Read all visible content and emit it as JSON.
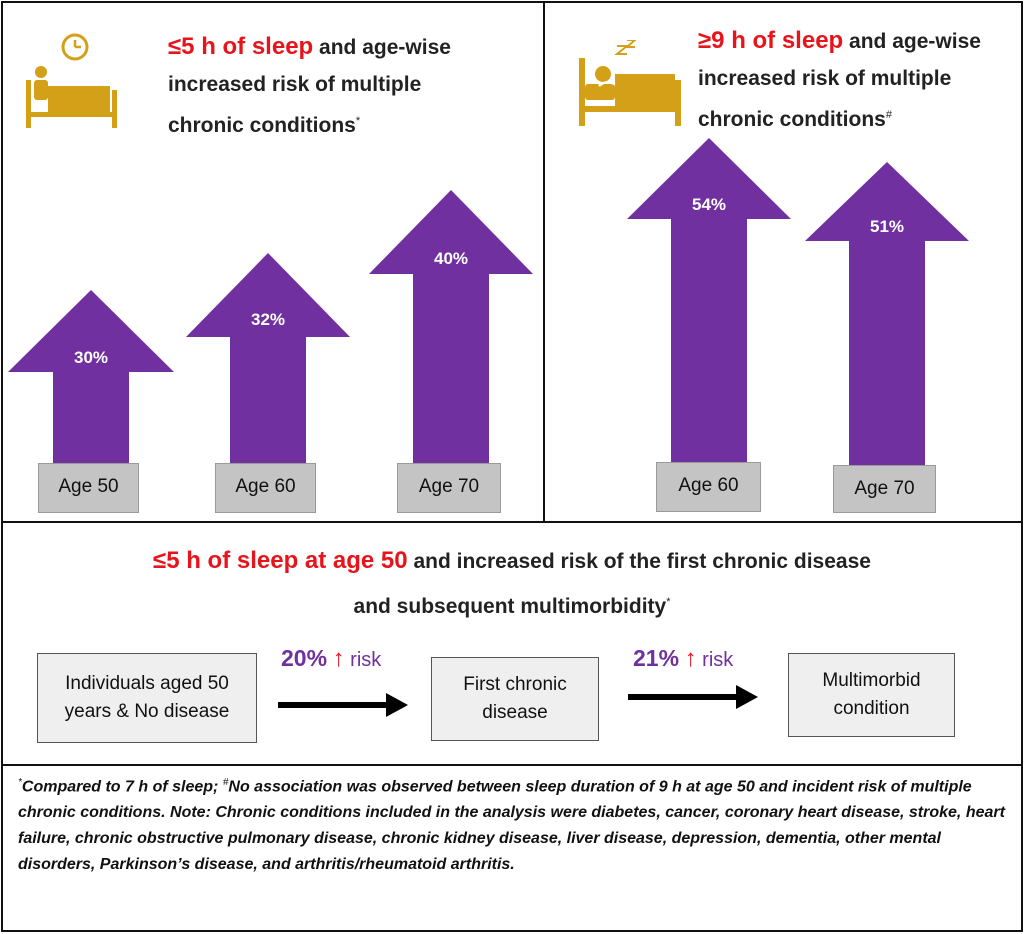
{
  "panel_left": {
    "title_highlight": "≤5 h of sleep",
    "title_line1_rest": " and age-wise",
    "title_line2": "increased risk of multiple",
    "title_line3": "chronic conditions",
    "title_mark": "*",
    "icon": "bed-with-clock-icon",
    "bars": [
      {
        "label": "Age 50",
        "value_text": "30%"
      },
      {
        "label": "Age 60",
        "value_text": "32%"
      },
      {
        "label": "Age 70",
        "value_text": "40%"
      }
    ]
  },
  "panel_right": {
    "title_highlight": "≥9 h of sleep",
    "title_line1_rest": " and age-wise",
    "title_line2": "increased risk of multiple",
    "title_line3": "chronic conditions",
    "title_mark": "#",
    "icon": "sleeping-in-bed-icon",
    "bars": [
      {
        "label": "Age 60",
        "value_text": "54%"
      },
      {
        "label": "Age 70",
        "value_text": "51%"
      }
    ]
  },
  "panel_bottom": {
    "title_highlight": "≤5 h of sleep at age 50",
    "title_line1_rest": " and increased risk of the first chronic disease",
    "title_line2": "and subsequent multimorbidity",
    "title_mark": "*",
    "flow": [
      {
        "line1": "Individuals aged 50",
        "line2": "years & No disease"
      },
      {
        "line1": "First chronic",
        "line2": "disease"
      },
      {
        "line1": "Multimorbid",
        "line2": "condition"
      }
    ],
    "risks": [
      {
        "value": "20%",
        "arrow": "↑",
        "word": "risk"
      },
      {
        "value": "21%",
        "arrow": "↑",
        "word": "risk"
      }
    ]
  },
  "footnote": {
    "mark1": "*",
    "part1": "Compared to 7 h of sleep; ",
    "mark2": "#",
    "part2": "No association was observed between sleep duration of 9 h at age 50 and incident risk of multiple chronic conditions. Note: Chronic conditions included in the analysis were diabetes, cancer, coronary heart disease, stroke, heart failure, chronic obstructive pulmonary disease, chronic kidney disease, liver disease, depression, dementia, other mental disorders, Parkinson’s disease, and arthritis/rheumatoid arthritis."
  },
  "colors": {
    "arrow": "#7030a0",
    "highlight": "#e8141b",
    "icon": "#d4a017",
    "age_box": "#c4c4c4"
  }
}
